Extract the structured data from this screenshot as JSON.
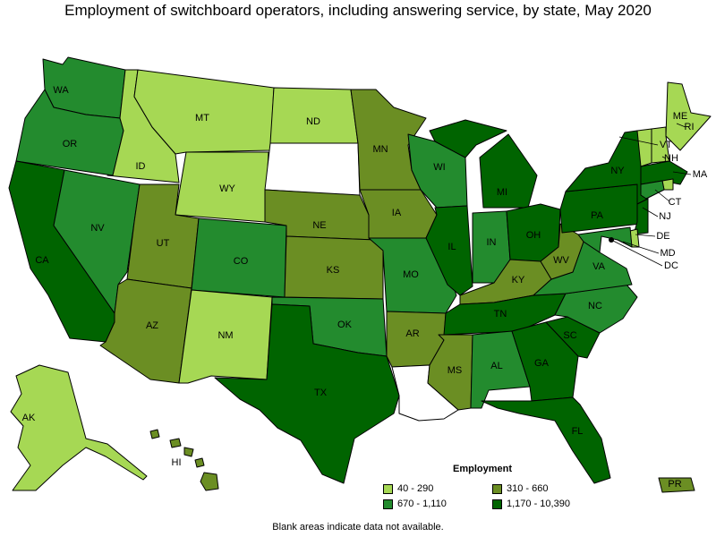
{
  "title": "Employment of switchboard operators, including answering service, by state, May 2020",
  "footnote": "Blank areas indicate data not available.",
  "legend": {
    "title": "Employment",
    "items": [
      {
        "label": "40 - 290",
        "color": "#a6d854"
      },
      {
        "label": "310 - 660",
        "color": "#6b8e23"
      },
      {
        "label": "670 - 1,110",
        "color": "#238b2e"
      },
      {
        "label": "1,170 - 10,390",
        "color": "#006400"
      }
    ]
  },
  "states": [
    {
      "abbr": "WA",
      "range": "670 - 1,110"
    },
    {
      "abbr": "OR",
      "range": "670 - 1,110"
    },
    {
      "abbr": "CA",
      "range": "1,170 - 10,390"
    },
    {
      "abbr": "ID",
      "range": "40 - 290"
    },
    {
      "abbr": "NV",
      "range": "670 - 1,110"
    },
    {
      "abbr": "MT",
      "range": "40 - 290"
    },
    {
      "abbr": "WY",
      "range": "40 - 290"
    },
    {
      "abbr": "UT",
      "range": "310 - 660"
    },
    {
      "abbr": "AZ",
      "range": "310 - 660"
    },
    {
      "abbr": "CO",
      "range": "670 - 1,110"
    },
    {
      "abbr": "NM",
      "range": "40 - 290"
    },
    {
      "abbr": "ND",
      "range": "40 - 290"
    },
    {
      "abbr": "SD",
      "range": null
    },
    {
      "abbr": "NE",
      "range": "310 - 660"
    },
    {
      "abbr": "KS",
      "range": "310 - 660"
    },
    {
      "abbr": "OK",
      "range": "670 - 1,110"
    },
    {
      "abbr": "TX",
      "range": "1,170 - 10,390"
    },
    {
      "abbr": "MN",
      "range": "310 - 660"
    },
    {
      "abbr": "IA",
      "range": "310 - 660"
    },
    {
      "abbr": "MO",
      "range": "670 - 1,110"
    },
    {
      "abbr": "AR",
      "range": "310 - 660"
    },
    {
      "abbr": "LA",
      "range": null
    },
    {
      "abbr": "WI",
      "range": "670 - 1,110"
    },
    {
      "abbr": "IL",
      "range": "1,170 - 10,390"
    },
    {
      "abbr": "MI",
      "range": "1,170 - 10,390"
    },
    {
      "abbr": "IN",
      "range": "670 - 1,110"
    },
    {
      "abbr": "OH",
      "range": "1,170 - 10,390"
    },
    {
      "abbr": "KY",
      "range": "310 - 660"
    },
    {
      "abbr": "TN",
      "range": "1,170 - 10,390"
    },
    {
      "abbr": "MS",
      "range": "310 - 660"
    },
    {
      "abbr": "AL",
      "range": "670 - 1,110"
    },
    {
      "abbr": "GA",
      "range": "1,170 - 10,390"
    },
    {
      "abbr": "FL",
      "range": "1,170 - 10,390"
    },
    {
      "abbr": "SC",
      "range": "1,170 - 10,390"
    },
    {
      "abbr": "NC",
      "range": "670 - 1,110"
    },
    {
      "abbr": "VA",
      "range": "670 - 1,110"
    },
    {
      "abbr": "WV",
      "range": "310 - 660"
    },
    {
      "abbr": "PA",
      "range": "1,170 - 10,390"
    },
    {
      "abbr": "NY",
      "range": "1,170 - 10,390"
    },
    {
      "abbr": "ME",
      "range": "40 - 290"
    },
    {
      "abbr": "VT",
      "range": "40 - 290"
    },
    {
      "abbr": "NH",
      "range": "40 - 290"
    },
    {
      "abbr": "MA",
      "range": "1,170 - 10,390"
    },
    {
      "abbr": "RI",
      "range": "40 - 290"
    },
    {
      "abbr": "CT",
      "range": "670 - 1,110"
    },
    {
      "abbr": "NJ",
      "range": "1,170 - 10,390"
    },
    {
      "abbr": "DE",
      "range": "40 - 290"
    },
    {
      "abbr": "MD",
      "range": "670 - 1,110"
    },
    {
      "abbr": "DC",
      "range": "1,170 - 10,390"
    },
    {
      "abbr": "AK",
      "range": "40 - 290"
    },
    {
      "abbr": "HI",
      "range": "310 - 660"
    },
    {
      "abbr": "PR",
      "range": "310 - 660"
    }
  ]
}
